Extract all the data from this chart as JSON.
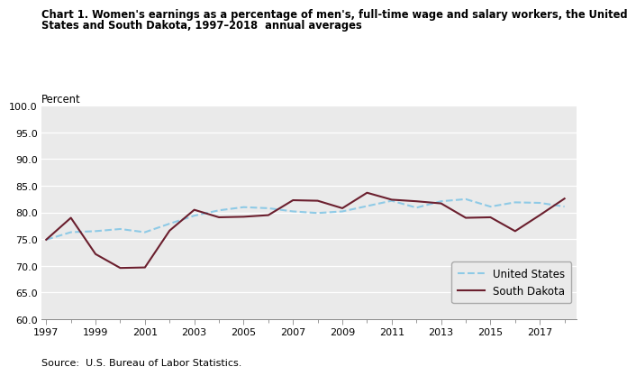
{
  "title_line1": "Chart 1. Women's earnings as a percentage of men's, full-time wage and salary workers, the United",
  "title_line2": "States and South Dakota, 1997–2018  annual averages",
  "ylabel": "Percent",
  "source": "Source:  U.S. Bureau of Labor Statistics.",
  "years": [
    1997,
    1998,
    1999,
    2000,
    2001,
    2002,
    2003,
    2004,
    2005,
    2006,
    2007,
    2008,
    2009,
    2010,
    2011,
    2012,
    2013,
    2014,
    2015,
    2016,
    2017,
    2018
  ],
  "us_values": [
    74.9,
    76.3,
    76.5,
    76.9,
    76.3,
    77.9,
    79.4,
    80.4,
    81.0,
    80.8,
    80.2,
    79.9,
    80.2,
    81.2,
    82.2,
    80.9,
    82.1,
    82.5,
    81.1,
    81.9,
    81.8,
    81.1
  ],
  "sd_values": [
    74.9,
    79.0,
    72.2,
    69.6,
    69.7,
    76.6,
    80.5,
    79.1,
    79.2,
    79.5,
    82.3,
    82.2,
    80.8,
    83.7,
    82.4,
    82.1,
    81.7,
    79.0,
    79.1,
    76.5,
    79.5,
    82.6
  ],
  "us_color": "#8ecae6",
  "sd_color": "#6b1f2e",
  "ylim": [
    60.0,
    100.0
  ],
  "yticks": [
    60.0,
    65.0,
    70.0,
    75.0,
    80.0,
    85.0,
    90.0,
    95.0,
    100.0
  ],
  "xticks": [
    1997,
    1999,
    2001,
    2003,
    2005,
    2007,
    2009,
    2011,
    2013,
    2015,
    2017
  ],
  "bg_color": "#ffffff",
  "plot_bg_color": "#eaeaea",
  "grid_color": "#ffffff",
  "legend_us": "United States",
  "legend_sd": "South Dakota"
}
